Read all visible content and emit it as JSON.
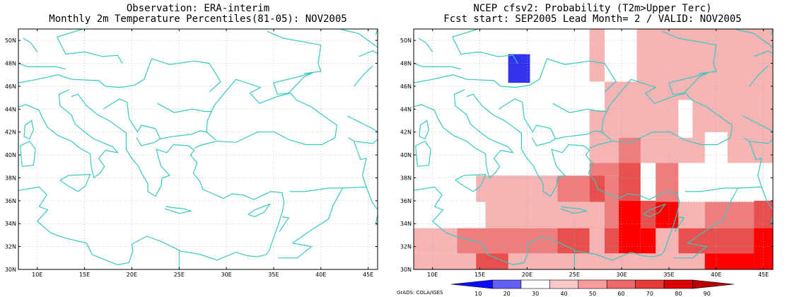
{
  "left_panel": {
    "title_line1": "Observation: ERA-interim",
    "title_line2": "Monthly 2m Temperature Percentiles(81-05): NOV2005"
  },
  "right_panel": {
    "title_line1": "NCEP cfsv2: Probability (T2m>Upper Terc)",
    "title_line2": "Fcst start: SEP2005  Lead Month= 2 / VALID: NOV2005"
  },
  "axes": {
    "lon_labels": [
      "10E",
      "15E",
      "20E",
      "25E",
      "30E",
      "35E",
      "40E",
      "45E"
    ],
    "lat_labels": [
      "30N",
      "32N",
      "34N",
      "36N",
      "38N",
      "40N",
      "42N",
      "44N",
      "46N",
      "48N",
      "50N"
    ]
  },
  "colorbar": {
    "labels": [
      "10",
      "20",
      "30",
      "40",
      "50",
      "60",
      "70",
      "80",
      "90"
    ],
    "colors": [
      "#0b0bff",
      "#6060f8",
      "#ffffff",
      "#ffc8c8",
      "#f89c9c",
      "#ee6a6a",
      "#e43a3a",
      "#dd0000",
      "#b80000"
    ]
  },
  "footer_text": "GrADS: COLA/IGES",
  "colors": {
    "coast": "#38c8c0",
    "grid": "#a8a8a8",
    "prob_40_50": "#f7b4b4",
    "prob_50_60": "#ee7e7e",
    "prob_60_70": "#e85050",
    "prob_70_80": "#ff0000",
    "prob_10_20": "#3333ee"
  }
}
